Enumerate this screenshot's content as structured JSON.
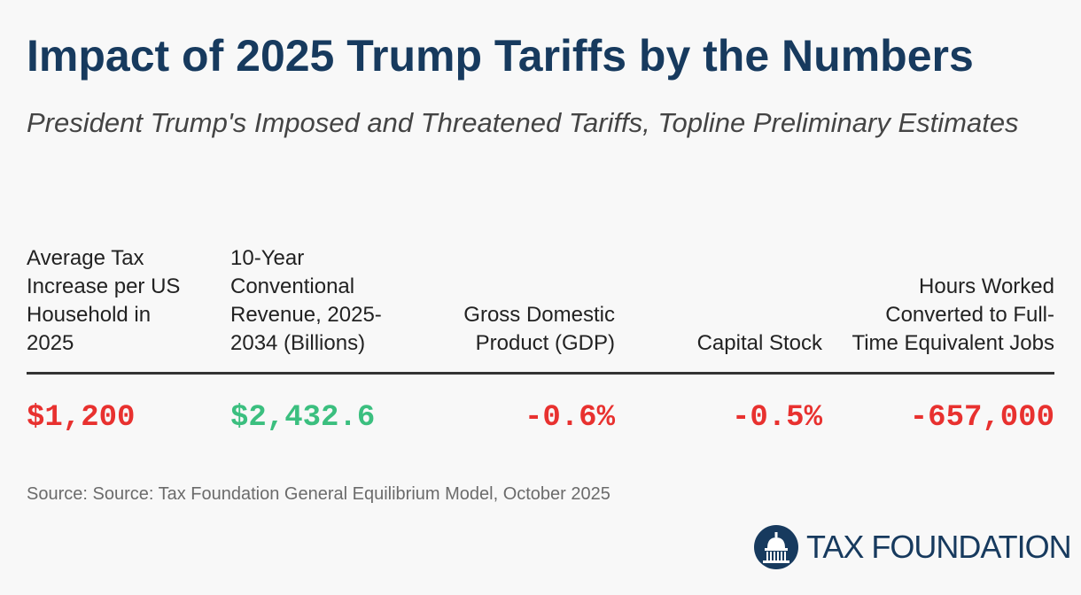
{
  "title": "Impact of 2025 Trump Tariffs by the Numbers",
  "subtitle": "President Trump's Imposed and Threatened Tariffs, Topline Preliminary Estimates",
  "chart_data": {
    "type": "table",
    "title": "Impact of 2025 Trump Tariffs by the Numbers",
    "subtitle": "President Trump's Imposed and Threatened Tariffs, Topline Preliminary Estimates",
    "columns": [
      {
        "header": "Average Tax Increase per US Household in 2025",
        "value": "$1,200",
        "color": "#e8312f"
      },
      {
        "header": "10-Year Conventional Revenue, 2025-2034 (Billions)",
        "value": "$2,432.6",
        "color": "#3bbf7f"
      },
      {
        "header": "Gross Domestic Product (GDP)",
        "value": "-0.6%",
        "color": "#e8312f"
      },
      {
        "header": "Capital Stock",
        "value": "-0.5%",
        "color": "#e8312f"
      },
      {
        "header": "Hours Worked Converted to Full-Time Equivalent Jobs",
        "value": "-657,000",
        "color": "#e8312f"
      }
    ]
  },
  "source": "Source: Source: Tax Foundation General Equilibrium Model, October 2025",
  "logo": {
    "text": "TAX FOUNDATION",
    "icon": "capitol-dome-icon",
    "color": "#173a5e"
  }
}
